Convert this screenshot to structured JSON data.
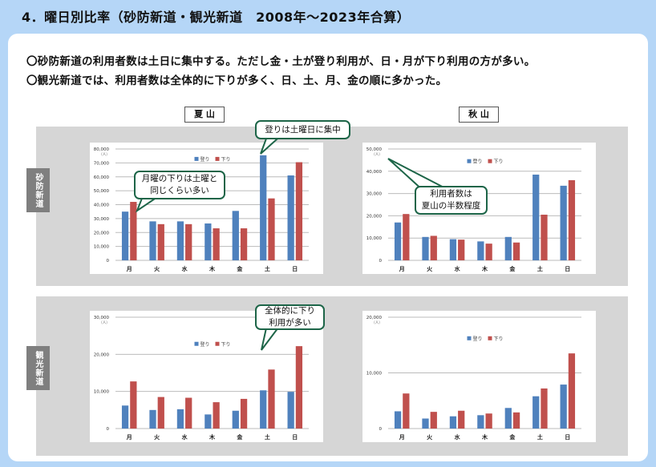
{
  "title": "4．曜日別比率（砂防新道・観光新道　2008年～2023年合算）",
  "summary": [
    "〇砂防新道の利用者数は土日に集中する。ただし金・土が登り利用が、日・月が下り利用の方が多い。",
    "〇観光新道では、利用者数は全体的に下りが多く、日、土、月、金の順に多かった。"
  ],
  "columns": [
    "夏 山",
    "秋 山"
  ],
  "rows": [
    "砂防新道",
    "観光新道"
  ],
  "callouts": {
    "c1": [
      "登りは土曜日に集中"
    ],
    "c2": [
      "月曜の下りは土曜と",
      "同じくらい多い"
    ],
    "c3": [
      "利用者数は",
      "夏山の半数程度"
    ],
    "c4": [
      "全体的に下り",
      "利用が多い"
    ]
  },
  "colors": {
    "up": "#4f81bd",
    "down": "#c0504d",
    "callout_border": "#1d6548"
  },
  "chart_data": [
    {
      "type": "bar",
      "title": "砂防新道 夏山",
      "unit": "（人）",
      "categories": [
        "月",
        "火",
        "水",
        "木",
        "金",
        "土",
        "日"
      ],
      "ylim": [
        0,
        80000
      ],
      "yticks": [
        0,
        10000,
        20000,
        30000,
        40000,
        50000,
        60000,
        70000,
        80000
      ],
      "legend": "top-center",
      "series": [
        {
          "name": "登り",
          "values": [
            35000,
            28000,
            28000,
            26500,
            35500,
            75500,
            61000
          ]
        },
        {
          "name": "下り",
          "values": [
            42000,
            26000,
            26000,
            23000,
            23000,
            44500,
            70500
          ]
        }
      ]
    },
    {
      "type": "bar",
      "title": "砂防新道 秋山",
      "unit": "（人）",
      "categories": [
        "月",
        "火",
        "水",
        "木",
        "金",
        "土",
        "日"
      ],
      "ylim": [
        0,
        50000
      ],
      "yticks": [
        0,
        10000,
        20000,
        30000,
        40000,
        50000
      ],
      "legend": "top-center",
      "series": [
        {
          "name": "登り",
          "values": [
            17000,
            10500,
            9500,
            8500,
            10500,
            38500,
            33500
          ]
        },
        {
          "name": "下り",
          "values": [
            20800,
            11000,
            9300,
            7500,
            8000,
            20500,
            36000
          ]
        }
      ]
    },
    {
      "type": "bar",
      "title": "観光新道 夏山",
      "unit": "（人）",
      "categories": [
        "月",
        "火",
        "水",
        "木",
        "金",
        "土",
        "日"
      ],
      "ylim": [
        0,
        30000
      ],
      "yticks": [
        0,
        10000,
        20000,
        30000
      ],
      "legend": "top-center",
      "series": [
        {
          "name": "登り",
          "values": [
            6200,
            5000,
            5200,
            3800,
            4800,
            10300,
            9900
          ]
        },
        {
          "name": "下り",
          "values": [
            12700,
            8500,
            8300,
            7100,
            8000,
            15900,
            22200
          ]
        }
      ]
    },
    {
      "type": "bar",
      "title": "観光新道 秋山",
      "unit": "（人）",
      "categories": [
        "月",
        "火",
        "水",
        "木",
        "金",
        "土",
        "日"
      ],
      "ylim": [
        0,
        20000
      ],
      "yticks": [
        0,
        10000,
        20000
      ],
      "legend": "top-center",
      "series": [
        {
          "name": "登り",
          "values": [
            3100,
            1800,
            2200,
            2400,
            3700,
            5800,
            7900
          ]
        },
        {
          "name": "下り",
          "values": [
            6300,
            3000,
            3200,
            2700,
            2900,
            7200,
            13500
          ]
        }
      ]
    }
  ]
}
